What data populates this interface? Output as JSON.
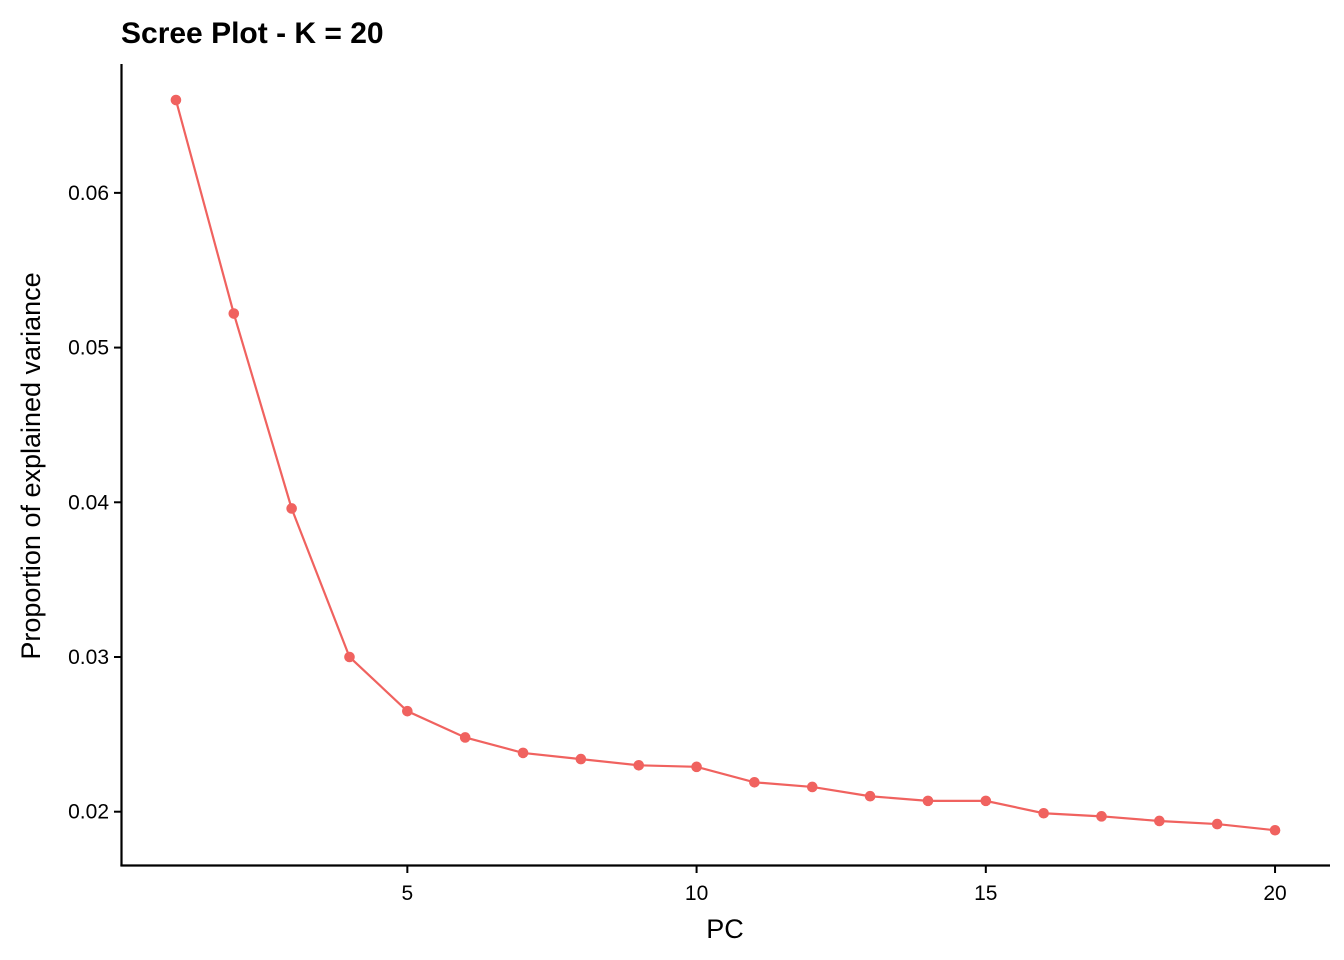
{
  "chart_data": {
    "type": "line",
    "title": "Scree Plot - K = 20",
    "xlabel": "PC",
    "ylabel": "Proportion of explained variance",
    "x": [
      1,
      2,
      3,
      4,
      5,
      6,
      7,
      8,
      9,
      10,
      11,
      12,
      13,
      14,
      15,
      16,
      17,
      18,
      19,
      20
    ],
    "values": [
      0.066,
      0.0522,
      0.0396,
      0.03,
      0.0265,
      0.0248,
      0.0238,
      0.0234,
      0.023,
      0.0229,
      0.0219,
      0.0216,
      0.021,
      0.0207,
      0.0207,
      0.0199,
      0.0197,
      0.0194,
      0.0192,
      0.0188
    ],
    "x_ticks": [
      "5",
      "10",
      "15",
      "20"
    ],
    "y_ticks": [
      "0.02",
      "0.03",
      "0.04",
      "0.05",
      "0.06"
    ],
    "xlim": [
      0.05,
      20.95
    ],
    "ylim": [
      0.01649,
      0.06833
    ],
    "grid": false,
    "line_color": "#F0625F",
    "point_color": "#F0625F"
  }
}
